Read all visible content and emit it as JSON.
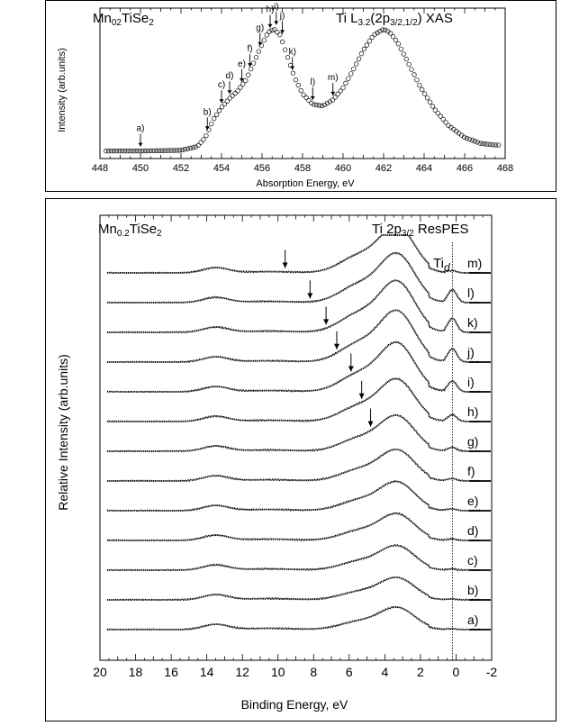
{
  "chart_data": [
    {
      "type": "scatter",
      "title_left": "Mn",
      "title_left_sub": "02",
      "title_left_rest": "TiSe",
      "title_left_sub2": "2",
      "title_right": "Ti L",
      "title_right_sub": "3.2",
      "title_right_mid": "(2p",
      "title_right_sub2": "3/2,1/2",
      "title_right_end": ") XAS",
      "xlabel": "Absorption Energy, eV",
      "ylabel": "Intensity (arb.units)",
      "xlim": [
        448,
        468
      ],
      "ylim": [
        0,
        1.0
      ],
      "xticks": [
        "448",
        "450",
        "452",
        "454",
        "456",
        "458",
        "460",
        "462",
        "464",
        "466",
        "468"
      ],
      "series": [
        {
          "marker": "open-circle",
          "x": [
            448.3,
            450,
            452,
            452.8,
            453.2,
            453.6,
            454.0,
            454.4,
            454.8,
            455.2,
            455.6,
            456.0,
            456.3,
            456.6,
            456.9,
            457.2,
            457.6,
            458.0,
            458.5,
            459.0,
            459.5,
            460.0,
            460.5,
            461.0,
            461.5,
            462.0,
            462.3,
            462.7,
            463.2,
            463.8,
            464.5,
            465.2,
            466.0,
            466.8,
            467.5
          ],
          "y": [
            0.05,
            0.05,
            0.055,
            0.08,
            0.14,
            0.26,
            0.34,
            0.4,
            0.45,
            0.52,
            0.64,
            0.76,
            0.84,
            0.86,
            0.82,
            0.7,
            0.54,
            0.43,
            0.36,
            0.35,
            0.39,
            0.47,
            0.59,
            0.72,
            0.82,
            0.86,
            0.84,
            0.77,
            0.64,
            0.48,
            0.33,
            0.22,
            0.14,
            0.1,
            0.09
          ]
        }
      ],
      "annotations": [
        {
          "label": "a)",
          "x": 450.0,
          "y": 0.05
        },
        {
          "label": "b)",
          "x": 453.3,
          "y": 0.16
        },
        {
          "label": "c)",
          "x": 454.0,
          "y": 0.34
        },
        {
          "label": "d)",
          "x": 454.4,
          "y": 0.4
        },
        {
          "label": "e)",
          "x": 455.0,
          "y": 0.48
        },
        {
          "label": "f)",
          "x": 455.4,
          "y": 0.58
        },
        {
          "label": "g)",
          "x": 455.9,
          "y": 0.72
        },
        {
          "label": "h)",
          "x": 456.4,
          "y": 0.84
        },
        {
          "label": "i)",
          "x": 456.7,
          "y": 0.86
        },
        {
          "label": "j)",
          "x": 457.0,
          "y": 0.8
        },
        {
          "label": "k)",
          "x": 457.5,
          "y": 0.56
        },
        {
          "label": "l)",
          "x": 458.5,
          "y": 0.36
        },
        {
          "label": "m)",
          "x": 459.5,
          "y": 0.39
        }
      ]
    },
    {
      "type": "line",
      "title_left": "Mn",
      "title_left_sub": "0.2",
      "title_left_rest": "TiSe",
      "title_left_sub2": "2",
      "title_right": "Ti 2p",
      "title_right_sub": "3/2",
      "title_right_end": " ResPES",
      "marker_label": "Ti",
      "marker_label_sub": "d",
      "xlabel": "Binding Energy, eV",
      "ylabel": "Relative Intensity (arb.units)",
      "xlim": [
        20,
        -2
      ],
      "reversed_x": true,
      "xticks": [
        "20",
        "18",
        "16",
        "14",
        "12",
        "10",
        "8",
        "6",
        "4",
        "2",
        "0",
        "-2"
      ],
      "vertical_line_x": 0.2,
      "series": [
        {
          "name": "a)",
          "arrow_x": null,
          "peak": 0.5,
          "ti": 0.1
        },
        {
          "name": "b)",
          "arrow_x": null,
          "peak": 0.5,
          "ti": 0.12
        },
        {
          "name": "c)",
          "arrow_x": null,
          "peak": 0.55,
          "ti": 0.16
        },
        {
          "name": "d)",
          "arrow_x": null,
          "peak": 0.6,
          "ti": 0.2
        },
        {
          "name": "e)",
          "arrow_x": null,
          "peak": 0.65,
          "ti": 0.26
        },
        {
          "name": "f)",
          "arrow_x": null,
          "peak": 0.7,
          "ti": 0.34
        },
        {
          "name": "g)",
          "arrow_x": 4.8,
          "peak": 0.8,
          "ti": 0.55
        },
        {
          "name": "h)",
          "arrow_x": 5.3,
          "peak": 0.95,
          "ti": 1.0
        },
        {
          "name": "i)",
          "arrow_x": 5.9,
          "peak": 1.1,
          "ti": 1.6
        },
        {
          "name": "j)",
          "arrow_x": 6.7,
          "peak": 1.15,
          "ti": 2.0
        },
        {
          "name": "k)",
          "arrow_x": 7.3,
          "peak": 1.15,
          "ti": 2.1
        },
        {
          "name": "l)",
          "arrow_x": 8.2,
          "peak": 1.1,
          "ti": 1.9
        },
        {
          "name": "m)",
          "arrow_x": 9.6,
          "peak": 1.05,
          "ti": 0.3
        }
      ]
    }
  ]
}
